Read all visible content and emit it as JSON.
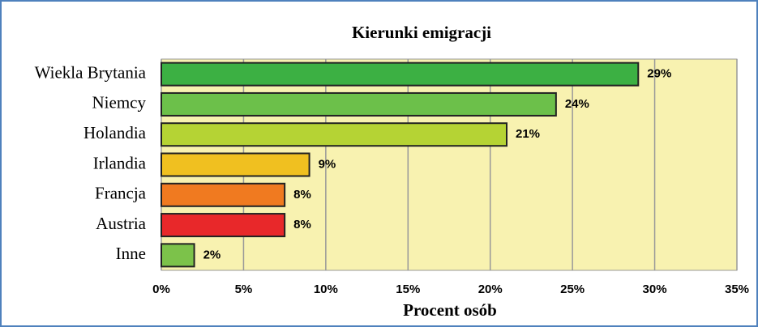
{
  "chart_data": {
    "type": "bar",
    "orientation": "horizontal",
    "title": "Kierunki   emigracji",
    "x_label": "Procent osób",
    "categories": [
      "Wiekla Brytania",
      "Niemcy",
      "Holandia",
      "Irlandia",
      "Francja",
      "Austria",
      "Inne"
    ],
    "values": [
      29,
      24,
      21,
      9,
      7.5,
      7.5,
      2
    ],
    "value_labels": [
      "29%",
      "24%",
      "21%",
      "9%",
      "8%",
      "8%",
      "2%"
    ],
    "colors": [
      "#3cb043",
      "#6cc04a",
      "#b5d334",
      "#f0c020",
      "#f07a20",
      "#e8282a",
      "#7cc24a"
    ],
    "xlim": [
      0,
      35
    ],
    "xticks": [
      {
        "value": 0,
        "label": "0%"
      },
      {
        "value": 5,
        "label": "5%"
      },
      {
        "value": 10,
        "label": "10%"
      },
      {
        "value": 15,
        "label": "15%"
      },
      {
        "value": 20,
        "label": "20%"
      },
      {
        "value": 25,
        "label": "25%"
      },
      {
        "value": 30,
        "label": "30%"
      },
      {
        "value": 35,
        "label": "35%"
      }
    ],
    "grid": true
  }
}
